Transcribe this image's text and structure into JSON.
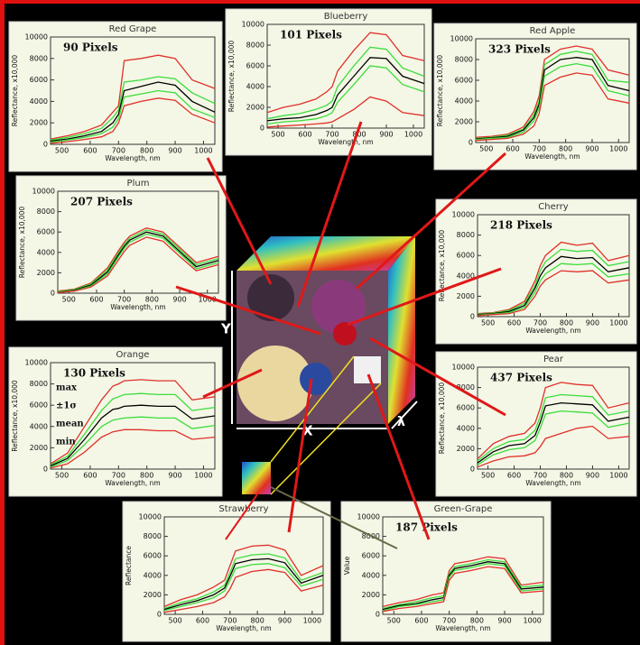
{
  "chart_data": [
    {
      "type": "line",
      "title": "Red Grape",
      "annotation": "90 Pixels",
      "xlabel": "Wavelength, nm",
      "ylabel": "Reflectance, x10,000",
      "x": [
        460,
        520,
        580,
        640,
        680,
        700,
        720,
        780,
        840,
        900,
        960,
        1040
      ],
      "xlim": [
        460,
        1040
      ],
      "xticks": [
        500,
        600,
        700,
        800,
        900,
        1000
      ],
      "ylim": [
        0,
        10000
      ],
      "yticks": [
        0,
        2000,
        4000,
        6000,
        8000,
        10000
      ],
      "series": [
        {
          "color": "#e0302a",
          "values": [
            500,
            800,
            1200,
            1800,
            3000,
            3600,
            7800,
            8000,
            8300,
            8000,
            6000,
            5200
          ]
        },
        {
          "color": "#3cdc3c",
          "values": [
            400,
            650,
            1000,
            1500,
            2500,
            3200,
            5800,
            6000,
            6300,
            6100,
            4800,
            3800
          ]
        },
        {
          "color": "#000000",
          "values": [
            300,
            500,
            800,
            1200,
            2000,
            2800,
            5000,
            5400,
            5800,
            5500,
            4000,
            3000
          ]
        },
        {
          "color": "#3cdc3c",
          "values": [
            200,
            400,
            650,
            1000,
            1600,
            2400,
            4400,
            4700,
            5000,
            4800,
            3300,
            2500
          ]
        },
        {
          "color": "#e0302a",
          "values": [
            100,
            250,
            450,
            700,
            1200,
            2000,
            3600,
            4000,
            4300,
            4100,
            2800,
            2000
          ]
        }
      ]
    },
    {
      "type": "line",
      "title": "Blueberry",
      "annotation": "101 Pixels",
      "xlabel": "Wavelength, nm",
      "ylabel": "Reflectance, x10,000",
      "x": [
        460,
        520,
        580,
        640,
        680,
        700,
        720,
        780,
        840,
        900,
        960,
        1040
      ],
      "xlim": [
        460,
        1040
      ],
      "xticks": [
        500,
        600,
        700,
        800,
        900,
        1000
      ],
      "ylim": [
        0,
        10000
      ],
      "yticks": [
        0,
        2000,
        4000,
        6000,
        8000,
        10000
      ],
      "series": [
        {
          "color": "#e0302a",
          "values": [
            1500,
            2000,
            2300,
            2800,
            3500,
            4000,
            5500,
            7500,
            9200,
            9000,
            7000,
            6500
          ]
        },
        {
          "color": "#3cdc3c",
          "values": [
            900,
            1200,
            1400,
            1800,
            2200,
            2600,
            4000,
            6000,
            7800,
            7600,
            5800,
            5000
          ]
        },
        {
          "color": "#000000",
          "values": [
            700,
            900,
            1000,
            1300,
            1700,
            2000,
            3200,
            5000,
            6800,
            6700,
            5000,
            4300
          ]
        },
        {
          "color": "#3cdc3c",
          "values": [
            400,
            600,
            700,
            900,
            1200,
            1500,
            2500,
            4200,
            6000,
            5800,
            4200,
            3500
          ]
        },
        {
          "color": "#e0302a",
          "values": [
            100,
            200,
            300,
            400,
            500,
            600,
            900,
            1800,
            3000,
            2600,
            1500,
            1200
          ]
        }
      ]
    },
    {
      "type": "line",
      "title": "Red Apple",
      "annotation": "323 Pixels",
      "xlabel": "Wavelength, nm",
      "ylabel": "Reflectance, x10,000",
      "x": [
        460,
        520,
        580,
        640,
        680,
        700,
        720,
        780,
        840,
        900,
        960,
        1040
      ],
      "xlim": [
        460,
        1040
      ],
      "xticks": [
        500,
        600,
        700,
        800,
        900,
        1000
      ],
      "ylim": [
        0,
        10000
      ],
      "yticks": [
        0,
        2000,
        4000,
        6000,
        8000,
        10000
      ],
      "series": [
        {
          "color": "#e0302a",
          "values": [
            500,
            600,
            800,
            1500,
            3000,
            4500,
            8000,
            9000,
            9300,
            9000,
            7000,
            6500
          ]
        },
        {
          "color": "#3cdc3c",
          "values": [
            400,
            500,
            700,
            1300,
            2700,
            4000,
            7500,
            8500,
            8800,
            8500,
            6000,
            5800
          ]
        },
        {
          "color": "#000000",
          "values": [
            350,
            450,
            600,
            1200,
            2400,
            3700,
            7000,
            8000,
            8200,
            8000,
            5500,
            5000
          ]
        },
        {
          "color": "#3cdc3c",
          "values": [
            300,
            400,
            500,
            1000,
            2100,
            3300,
            6400,
            7300,
            7600,
            7300,
            5000,
            4500
          ]
        },
        {
          "color": "#e0302a",
          "values": [
            200,
            300,
            400,
            800,
            1600,
            2800,
            5500,
            6300,
            6700,
            6500,
            4200,
            3800
          ]
        }
      ]
    },
    {
      "type": "line",
      "title": "Plum",
      "annotation": "207 Pixels",
      "xlabel": "Wavelength, nm",
      "ylabel": "Reflectance, x10,000",
      "x": [
        460,
        520,
        580,
        640,
        680,
        700,
        720,
        780,
        840,
        900,
        960,
        1040
      ],
      "xlim": [
        460,
        1040
      ],
      "xticks": [
        500,
        600,
        700,
        800,
        900,
        1000
      ],
      "ylim": [
        0,
        10000
      ],
      "yticks": [
        0,
        2000,
        4000,
        6000,
        8000,
        10000
      ],
      "series": [
        {
          "color": "#e0302a",
          "values": [
            200,
            400,
            1000,
            2500,
            4200,
            5000,
            5600,
            6400,
            6000,
            4500,
            3000,
            3600
          ]
        },
        {
          "color": "#3cdc3c",
          "values": [
            150,
            350,
            900,
            2300,
            4000,
            4800,
            5400,
            6200,
            5800,
            4300,
            2800,
            3400
          ]
        },
        {
          "color": "#000000",
          "values": [
            100,
            300,
            800,
            2100,
            3800,
            4600,
            5200,
            6000,
            5600,
            4100,
            2600,
            3200
          ]
        },
        {
          "color": "#3cdc3c",
          "values": [
            80,
            250,
            700,
            1900,
            3600,
            4400,
            5000,
            5800,
            5400,
            3900,
            2400,
            3000
          ]
        },
        {
          "color": "#e0302a",
          "values": [
            50,
            200,
            600,
            1700,
            3300,
            4100,
            4700,
            5500,
            5100,
            3600,
            2200,
            2800
          ]
        }
      ]
    },
    {
      "type": "line",
      "title": "Cherry",
      "annotation": "218 Pixels",
      "xlabel": "Wavelength, nm",
      "ylabel": "Reflectance, x10,000",
      "x": [
        460,
        520,
        580,
        640,
        680,
        700,
        720,
        780,
        840,
        900,
        960,
        1040
      ],
      "xlim": [
        460,
        1040
      ],
      "xticks": [
        500,
        600,
        700,
        800,
        900,
        1000
      ],
      "ylim": [
        0,
        10000
      ],
      "yticks": [
        0,
        2000,
        4000,
        6000,
        8000,
        10000
      ],
      "series": [
        {
          "color": "#e0302a",
          "values": [
            300,
            400,
            700,
            1500,
            3500,
            5000,
            6000,
            7300,
            7000,
            7200,
            5500,
            6000
          ]
        },
        {
          "color": "#3cdc3c",
          "values": [
            250,
            350,
            600,
            1300,
            3100,
            4500,
            5400,
            6600,
            6400,
            6500,
            5000,
            5400
          ]
        },
        {
          "color": "#000000",
          "values": [
            200,
            300,
            500,
            1100,
            2800,
            4000,
            4800,
            5900,
            5700,
            5800,
            4400,
            4800
          ]
        },
        {
          "color": "#3cdc3c",
          "values": [
            150,
            250,
            400,
            900,
            2400,
            3500,
            4200,
            5200,
            5100,
            5200,
            3900,
            4200
          ]
        },
        {
          "color": "#e0302a",
          "values": [
            100,
            200,
            300,
            700,
            2000,
            3000,
            3600,
            4500,
            4400,
            4500,
            3300,
            3600
          ]
        }
      ]
    },
    {
      "type": "line",
      "title": "Orange",
      "annotation": "130 Pixels",
      "annotations": [
        "max",
        "±1σ",
        "mean",
        "min"
      ],
      "xlabel": "Wavelength, nm",
      "ylabel": "Reflectance, x10,000",
      "x": [
        460,
        520,
        580,
        640,
        680,
        700,
        720,
        780,
        840,
        900,
        960,
        1040
      ],
      "xlim": [
        460,
        1040
      ],
      "xticks": [
        500,
        600,
        700,
        800,
        900,
        1000
      ],
      "ylim": [
        0,
        10000
      ],
      "yticks": [
        0,
        2000,
        4000,
        6000,
        8000,
        10000
      ],
      "series": [
        {
          "color": "#e0302a",
          "values": [
            500,
            1500,
            4000,
            6500,
            7800,
            8000,
            8300,
            8400,
            8300,
            8300,
            6500,
            6800
          ]
        },
        {
          "color": "#3cdc3c",
          "values": [
            400,
            1200,
            3300,
            5500,
            6600,
            6800,
            7000,
            7100,
            7000,
            7000,
            5500,
            5800
          ]
        },
        {
          "color": "#000000",
          "values": [
            300,
            1000,
            2800,
            4800,
            5600,
            5700,
            5900,
            6000,
            5900,
            5900,
            4700,
            5000
          ]
        },
        {
          "color": "#3cdc3c",
          "values": [
            200,
            800,
            2300,
            4000,
            4600,
            4700,
            4800,
            4900,
            4800,
            4800,
            3800,
            4100
          ]
        },
        {
          "color": "#e0302a",
          "values": [
            100,
            500,
            1600,
            3000,
            3500,
            3600,
            3700,
            3700,
            3600,
            3600,
            2800,
            3000
          ]
        }
      ]
    },
    {
      "type": "line",
      "title": "Pear",
      "annotation": "437 Pixels",
      "xlabel": "Wavelength, nm",
      "ylabel": "Reflectance, x10,000",
      "x": [
        460,
        520,
        580,
        640,
        680,
        700,
        720,
        780,
        840,
        900,
        960,
        1040
      ],
      "xlim": [
        460,
        1040
      ],
      "xticks": [
        500,
        600,
        700,
        800,
        900,
        1000
      ],
      "ylim": [
        0,
        10000
      ],
      "yticks": [
        0,
        2000,
        4000,
        6000,
        8000,
        10000
      ],
      "series": [
        {
          "color": "#e0302a",
          "values": [
            1000,
            2500,
            3200,
            3500,
            4500,
            6000,
            8000,
            8500,
            8300,
            8200,
            6000,
            6500
          ]
        },
        {
          "color": "#3cdc3c",
          "values": [
            800,
            2000,
            2700,
            2900,
            3800,
            5200,
            7000,
            7300,
            7200,
            7100,
            5300,
            5700
          ]
        },
        {
          "color": "#000000",
          "values": [
            600,
            1700,
            2300,
            2500,
            3300,
            4600,
            6200,
            6500,
            6400,
            6300,
            4700,
            5100
          ]
        },
        {
          "color": "#3cdc3c",
          "values": [
            400,
            1400,
            1900,
            2100,
            2800,
            4000,
            5400,
            5700,
            5600,
            5500,
            4100,
            4500
          ]
        },
        {
          "color": "#e0302a",
          "values": [
            200,
            800,
            1200,
            1300,
            1600,
            2200,
            3000,
            3500,
            4000,
            4200,
            3000,
            3200
          ]
        }
      ]
    },
    {
      "type": "line",
      "title": "Strawberry",
      "xlabel": "Wavelength, nm",
      "ylabel": "Reflectance",
      "x": [
        460,
        520,
        580,
        640,
        680,
        700,
        720,
        780,
        840,
        900,
        960,
        1040
      ],
      "xlim": [
        460,
        1040
      ],
      "xticks": [
        500,
        600,
        700,
        800,
        900,
        1000
      ],
      "ylim": [
        0,
        10000
      ],
      "yticks": [
        0,
        2000,
        4000,
        6000,
        8000,
        10000
      ],
      "series": [
        {
          "color": "#e0302a",
          "values": [
            800,
            1500,
            2000,
            2800,
            3500,
            5000,
            6500,
            7000,
            7100,
            6600,
            4000,
            5000
          ]
        },
        {
          "color": "#3cdc3c",
          "values": [
            600,
            1200,
            1600,
            2300,
            3000,
            4300,
            5700,
            6100,
            6200,
            5800,
            3500,
            4300
          ]
        },
        {
          "color": "#000000",
          "values": [
            500,
            1000,
            1400,
            2000,
            2700,
            3900,
            5200,
            5600,
            5700,
            5300,
            3200,
            4000
          ]
        },
        {
          "color": "#3cdc3c",
          "values": [
            400,
            800,
            1200,
            1700,
            2400,
            3500,
            4700,
            5100,
            5200,
            4800,
            2900,
            3600
          ]
        },
        {
          "color": "#e0302a",
          "values": [
            200,
            500,
            800,
            1200,
            1800,
            2600,
            3800,
            4400,
            4600,
            4300,
            2400,
            3000
          ]
        }
      ]
    },
    {
      "type": "line",
      "title": "Green-Grape",
      "annotation": "187 Pixels",
      "xlabel": "Wavelength, nm",
      "ylabel": "Value",
      "x": [
        460,
        520,
        580,
        640,
        680,
        700,
        720,
        780,
        840,
        900,
        960,
        1040
      ],
      "xlim": [
        460,
        1040
      ],
      "xticks": [
        500,
        600,
        700,
        800,
        900,
        1000
      ],
      "ylim": [
        0,
        10000
      ],
      "yticks": [
        0,
        2000,
        4000,
        6000,
        8000,
        10000
      ],
      "series": [
        {
          "color": "#e0302a",
          "values": [
            800,
            1200,
            1500,
            2000,
            2200,
            4500,
            5200,
            5500,
            5900,
            5700,
            3000,
            3300
          ]
        },
        {
          "color": "#3cdc3c",
          "values": [
            600,
            1000,
            1300,
            1700,
            1900,
            4200,
            4900,
            5200,
            5600,
            5400,
            2800,
            3000
          ]
        },
        {
          "color": "#000000",
          "values": [
            500,
            900,
            1100,
            1500,
            1700,
            4000,
            4700,
            5000,
            5400,
            5200,
            2600,
            2800
          ]
        },
        {
          "color": "#3cdc3c",
          "values": [
            400,
            800,
            1000,
            1300,
            1500,
            3800,
            4500,
            4800,
            5200,
            5000,
            2400,
            2600
          ]
        },
        {
          "color": "#e0302a",
          "values": [
            300,
            600,
            800,
            1100,
            1300,
            3500,
            4200,
            4500,
            4900,
            4700,
            2200,
            2400
          ]
        }
      ]
    }
  ],
  "cube_labels": {
    "x": "X",
    "y": "Y",
    "lambda": "λ"
  }
}
